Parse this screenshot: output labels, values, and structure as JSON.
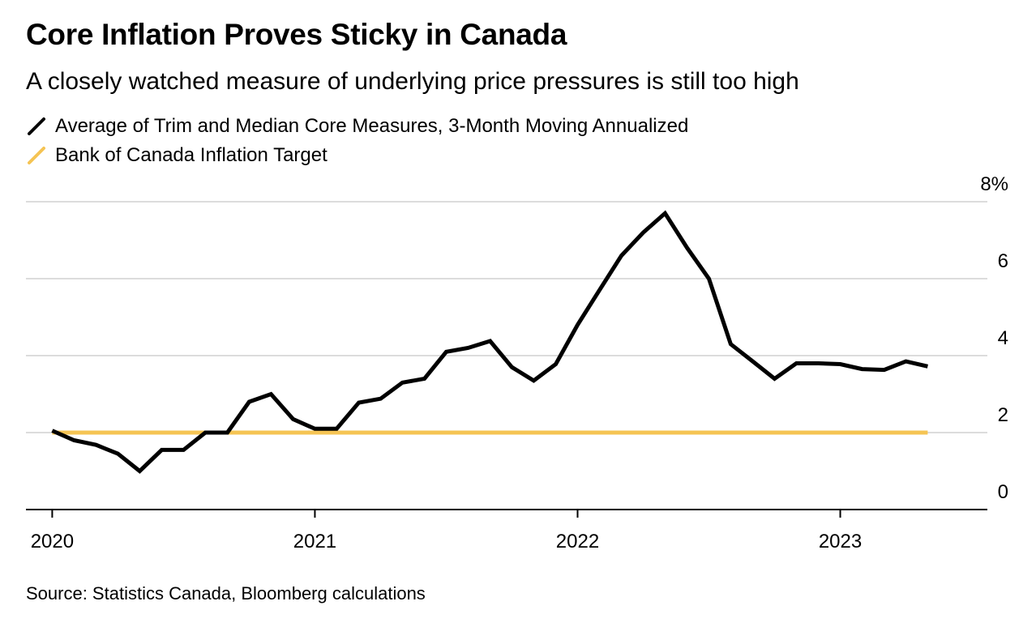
{
  "header": {
    "title": "Core Inflation Proves Sticky in Canada",
    "subtitle": "A closely watched measure of underlying price pressures is still too high"
  },
  "legend": [
    {
      "label": "Average of Trim and Median Core Measures, 3-Month Moving Annualized",
      "color": "#000000"
    },
    {
      "label": "Bank of Canada Inflation Target",
      "color": "#f5c454"
    }
  ],
  "source": "Source: Statistics Canada, Bloomberg calculations",
  "chart_data": {
    "type": "line",
    "title": "Core Inflation Proves Sticky in Canada",
    "xlabel": "",
    "ylabel": "%",
    "ylim": [
      0,
      8
    ],
    "yticks": [
      {
        "value": 0,
        "label": "0"
      },
      {
        "value": 2,
        "label": "2"
      },
      {
        "value": 4,
        "label": "4"
      },
      {
        "value": 6,
        "label": "6"
      },
      {
        "value": 8,
        "label": "8%"
      }
    ],
    "xticks": [
      {
        "value": 2020.0,
        "label": "2020"
      },
      {
        "value": 2021.0,
        "label": "2021"
      },
      {
        "value": 2022.0,
        "label": "2022"
      },
      {
        "value": 2023.0,
        "label": "2023"
      }
    ],
    "xlim": [
      2019.9,
      2023.56
    ],
    "grid": true,
    "series": [
      {
        "name": "Average of Trim and Median Core Measures, 3-Month Moving Annualized",
        "color": "#000000",
        "points": [
          [
            2020.0,
            2.05
          ],
          [
            2020.083,
            1.8
          ],
          [
            2020.167,
            1.68
          ],
          [
            2020.25,
            1.45
          ],
          [
            2020.333,
            1.0
          ],
          [
            2020.417,
            1.55
          ],
          [
            2020.5,
            1.55
          ],
          [
            2020.583,
            2.0
          ],
          [
            2020.667,
            2.0
          ],
          [
            2020.75,
            2.8
          ],
          [
            2020.833,
            3.0
          ],
          [
            2020.917,
            2.35
          ],
          [
            2021.0,
            2.1
          ],
          [
            2021.083,
            2.1
          ],
          [
            2021.167,
            2.78
          ],
          [
            2021.25,
            2.88
          ],
          [
            2021.333,
            3.3
          ],
          [
            2021.417,
            3.4
          ],
          [
            2021.5,
            4.1
          ],
          [
            2021.583,
            4.2
          ],
          [
            2021.667,
            4.38
          ],
          [
            2021.75,
            3.7
          ],
          [
            2021.833,
            3.35
          ],
          [
            2021.917,
            3.78
          ],
          [
            2022.0,
            4.8
          ],
          [
            2022.083,
            5.7
          ],
          [
            2022.167,
            6.6
          ],
          [
            2022.25,
            7.2
          ],
          [
            2022.333,
            7.7
          ],
          [
            2022.417,
            6.8
          ],
          [
            2022.5,
            6.0
          ],
          [
            2022.583,
            4.3
          ],
          [
            2022.667,
            3.85
          ],
          [
            2022.75,
            3.4
          ],
          [
            2022.833,
            3.8
          ],
          [
            2022.917,
            3.8
          ],
          [
            2023.0,
            3.78
          ],
          [
            2023.083,
            3.65
          ],
          [
            2023.167,
            3.63
          ],
          [
            2023.25,
            3.85
          ],
          [
            2023.333,
            3.72
          ]
        ]
      },
      {
        "name": "Bank of Canada Inflation Target",
        "color": "#f5c454",
        "points": [
          [
            2020.0,
            2.0
          ],
          [
            2023.333,
            2.0
          ]
        ]
      }
    ]
  }
}
